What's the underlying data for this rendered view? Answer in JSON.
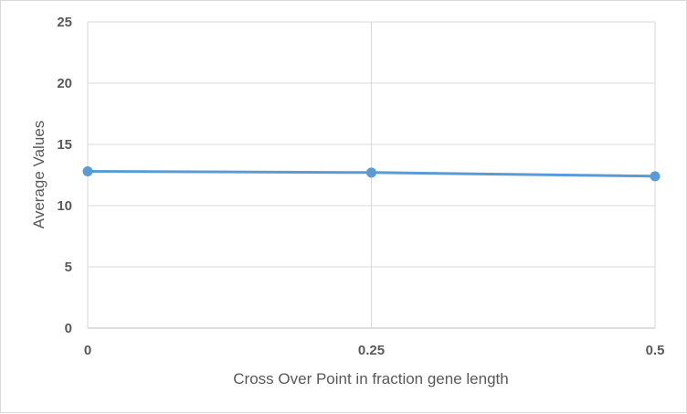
{
  "chart_data": {
    "type": "line",
    "title": "",
    "xlabel": "Cross Over Point in fraction gene length",
    "ylabel": "Average Values",
    "x": [
      0,
      0.25,
      0.5
    ],
    "x_tick_labels": [
      "0",
      "0.25",
      "0.5"
    ],
    "y_tick_labels": [
      "0",
      "5",
      "10",
      "15",
      "20",
      "25"
    ],
    "y_ticks": [
      0,
      5,
      10,
      15,
      20,
      25
    ],
    "xlim": [
      0,
      0.5
    ],
    "ylim": [
      0,
      25
    ],
    "grid": true,
    "legend": "none",
    "series": [
      {
        "values": [
          12.8,
          12.7,
          12.4
        ],
        "color": "#5b9bd5"
      }
    ]
  }
}
